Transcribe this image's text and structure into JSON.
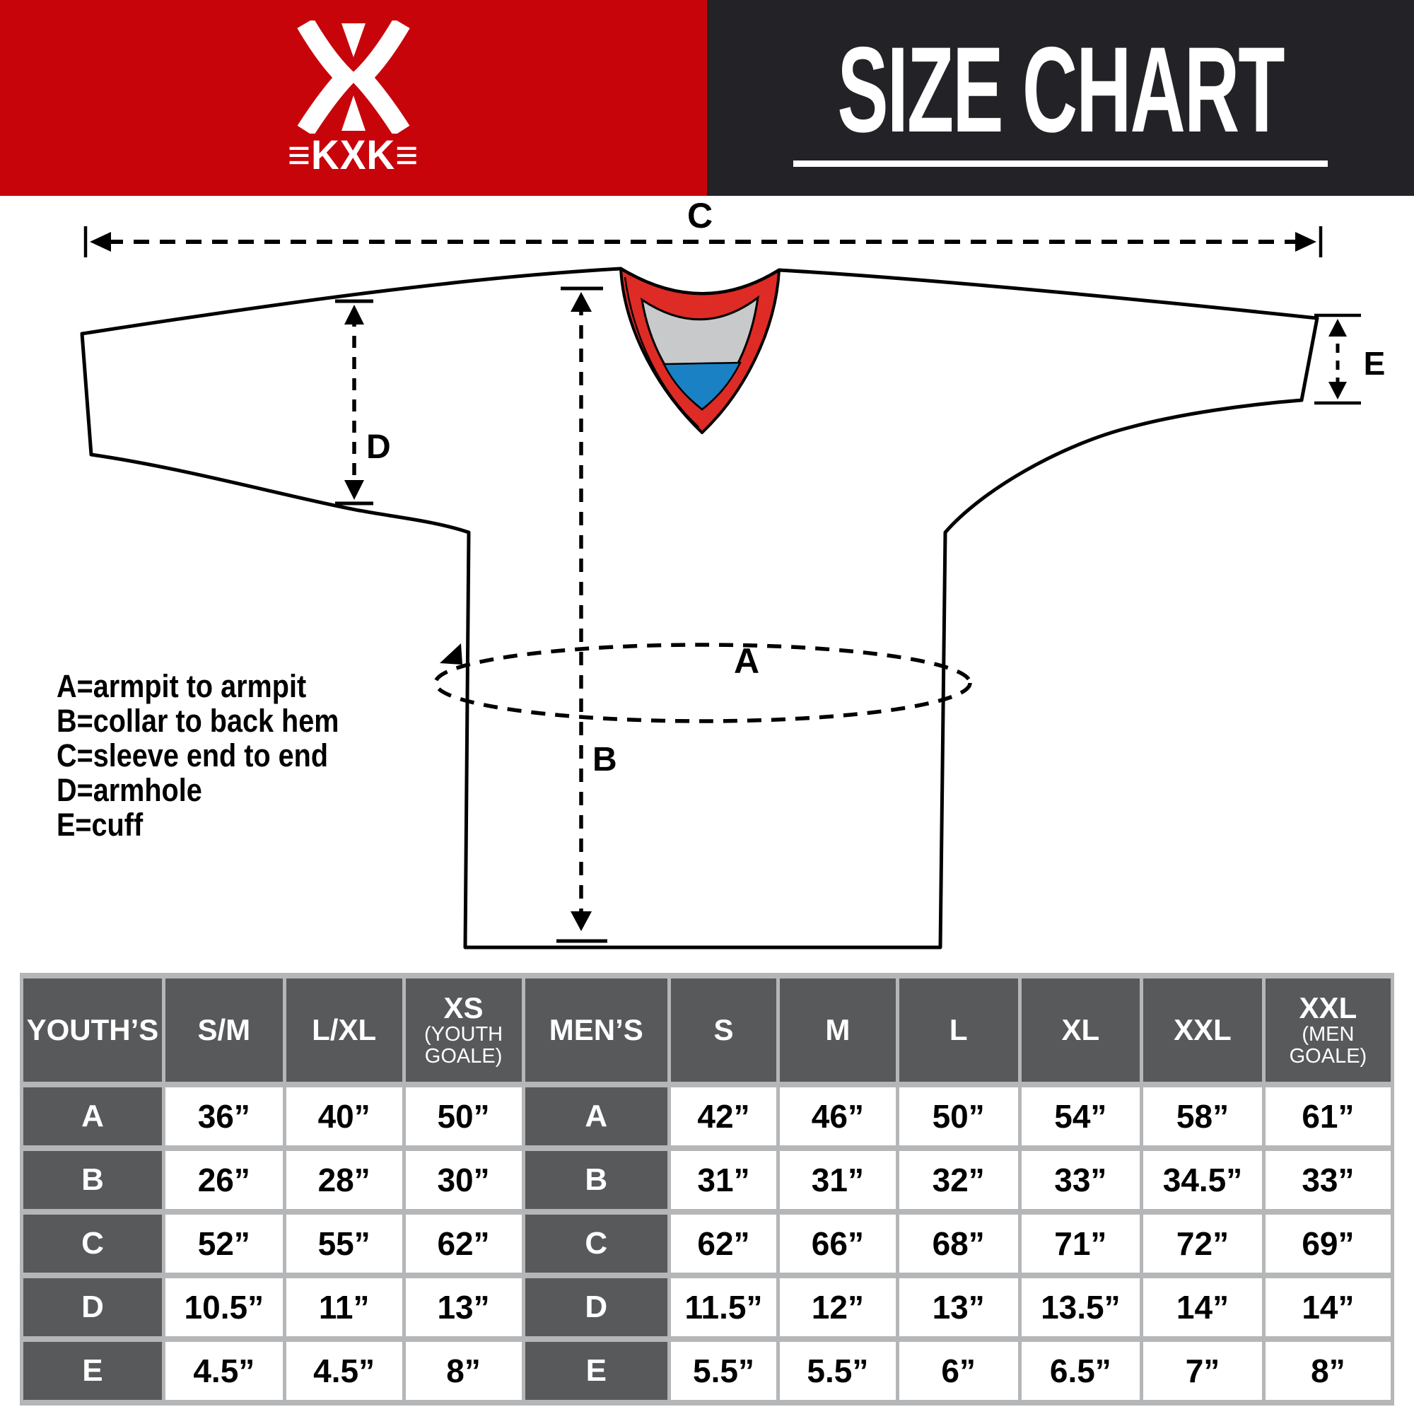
{
  "header": {
    "logo_text": "≡KXK≡",
    "title": "SIZE CHART"
  },
  "diagram": {
    "labels": {
      "a": "A",
      "b": "B",
      "c": "C",
      "d": "D",
      "e": "E"
    },
    "legend": [
      "A=armpit to armpit",
      "B=collar to back hem",
      "C=sleeve end to end",
      "D=armhole",
      "E=cuff"
    ]
  },
  "table": {
    "col_widths": [
      10.4,
      8.8,
      8.7,
      8.7,
      10.7,
      7.9,
      8.7,
      8.9,
      8.9,
      8.9,
      9.4
    ],
    "header": [
      {
        "label": "YOUTH’S"
      },
      {
        "label": "S/M"
      },
      {
        "label": "L/XL"
      },
      {
        "label": "XS",
        "sub": "(YOUTH GOALE)"
      },
      {
        "label": "MEN’S"
      },
      {
        "label": "S"
      },
      {
        "label": "M"
      },
      {
        "label": "L"
      },
      {
        "label": "XL"
      },
      {
        "label": "XXL"
      },
      {
        "label": "XXL",
        "sub": "(MEN GOALE)"
      }
    ],
    "rows": [
      {
        "cells": [
          "A",
          "36”",
          "40”",
          "50”",
          "A",
          "42”",
          "46”",
          "50”",
          "54”",
          "58”",
          "61”"
        ]
      },
      {
        "cells": [
          "B",
          "26”",
          "28”",
          "30”",
          "B",
          "31”",
          "31”",
          "32”",
          "33”",
          "34.5”",
          "33”"
        ]
      },
      {
        "cells": [
          "C",
          "52”",
          "55”",
          "62”",
          "C",
          "62”",
          "66”",
          "68”",
          "71”",
          "72”",
          "69”"
        ]
      },
      {
        "cells": [
          "D",
          "10.5”",
          "11”",
          "13”",
          "D",
          "11.5”",
          "12”",
          "13”",
          "13.5”",
          "14”",
          "14”"
        ]
      },
      {
        "cells": [
          "E",
          "4.5”",
          "4.5”",
          "8”",
          "E",
          "5.5”",
          "5.5”",
          "6”",
          "6.5”",
          "7”",
          "8”"
        ]
      }
    ]
  },
  "colors": {
    "header_red": "#c8040b",
    "header_black": "#232226",
    "collar_red": "#df2b25",
    "collar_gray": "#c8c9ca",
    "collar_blue": "#1a81c5",
    "cell_dark": "#58595b",
    "grid_gray": "#b4b6b8"
  },
  "chart_data": {
    "type": "table",
    "title": "SIZE CHART",
    "measure_key": {
      "A": "armpit to armpit",
      "B": "collar to back hem",
      "C": "sleeve end to end",
      "D": "armhole",
      "E": "cuff"
    },
    "tables": [
      {
        "name": "YOUTH’S",
        "columns": [
          "S/M",
          "L/XL",
          "XS (YOUTH GOALE)"
        ],
        "rows": {
          "A": [
            "36”",
            "40”",
            "50”"
          ],
          "B": [
            "26”",
            "28”",
            "30”"
          ],
          "C": [
            "52”",
            "55”",
            "62”"
          ],
          "D": [
            "10.5”",
            "11”",
            "13”"
          ],
          "E": [
            "4.5”",
            "4.5”",
            "8”"
          ]
        }
      },
      {
        "name": "MEN’S",
        "columns": [
          "S",
          "M",
          "L",
          "XL",
          "XXL",
          "XXL (MEN GOALE)"
        ],
        "rows": {
          "A": [
            "42”",
            "46”",
            "50”",
            "54”",
            "58”",
            "61”"
          ],
          "B": [
            "31”",
            "31”",
            "32”",
            "33”",
            "34.5”",
            "33”"
          ],
          "C": [
            "62”",
            "66”",
            "68”",
            "71”",
            "72”",
            "69”"
          ],
          "D": [
            "11.5”",
            "12”",
            "13”",
            "13.5”",
            "14”",
            "14”"
          ],
          "E": [
            "5.5”",
            "5.5”",
            "6”",
            "6.5”",
            "7”",
            "8”"
          ]
        }
      }
    ]
  }
}
